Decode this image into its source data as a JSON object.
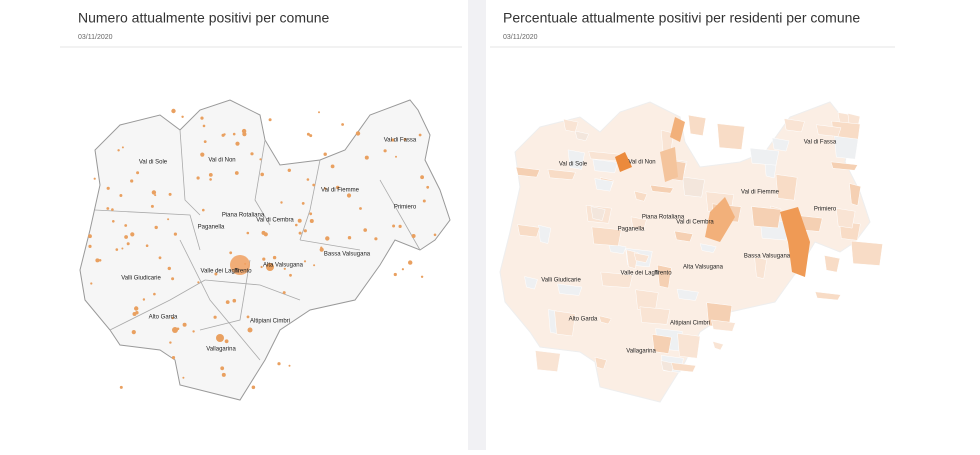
{
  "panels": [
    {
      "title": "Numero attualmente positivi per comune",
      "date": "03/11/2020",
      "labels": [
        "Val di Sole",
        "Val di Non",
        "Val di Fassa",
        "Val di Fiemme",
        "Primiero",
        "Piana Rotaliana",
        "Val di Cembra",
        "Paganella",
        "Valli Giudicarie",
        "Valle dei Laghi",
        "Trento",
        "Alta Valsugana",
        "Bassa Valsugana",
        "Alto Garda",
        "Altipiani Cimbri",
        "Vallagarina"
      ]
    },
    {
      "title": "Percentuale attualmente positivi per residenti per comune",
      "date": "03/11/2020",
      "labels": [
        "Val di Sole",
        "Val di Non",
        "Val di Fassa",
        "Val di Fiemme",
        "Primiero",
        "Piana Rotaliana",
        "Val di Cembra",
        "Paganella",
        "Valli Giudicarie",
        "Valle dei Laghi",
        "Trento",
        "Alta Valsugana",
        "Bassa Valsugana",
        "Alto Garda",
        "Altipiani Cimbri",
        "Vallagarina"
      ]
    }
  ]
}
